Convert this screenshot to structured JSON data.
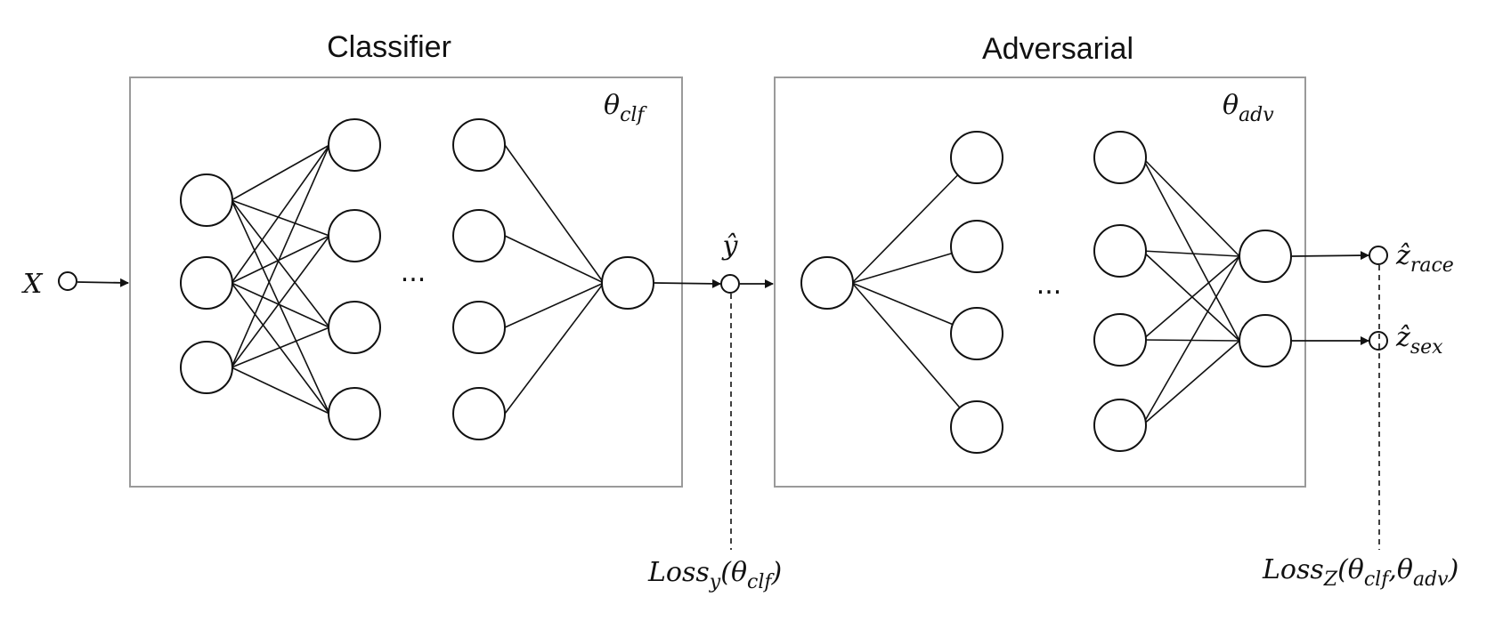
{
  "classifier": {
    "title": "Classifier",
    "param_base": "θ",
    "param_sub": "clf",
    "ellipsis": "..."
  },
  "adversarial": {
    "title": "Adversarial",
    "param_base": "θ",
    "param_sub": "adv",
    "ellipsis": "..."
  },
  "input": {
    "label": "X"
  },
  "prediction": {
    "label": "ŷ"
  },
  "outputs": [
    {
      "base": "ẑ",
      "sub": "race"
    },
    {
      "base": "ẑ",
      "sub": "sex"
    }
  ],
  "loss_y": {
    "base": "Loss",
    "sub": "y",
    "args_open": "(",
    "theta": "θ",
    "theta_sub": "clf",
    "args_close": ")"
  },
  "loss_z": {
    "base": "Loss",
    "sub": "Z",
    "args_open": "(",
    "theta1": "θ",
    "theta1_sub": "clf",
    "sep": ",",
    "theta2": "θ",
    "theta2_sub": "adv",
    "args_close": ")"
  }
}
